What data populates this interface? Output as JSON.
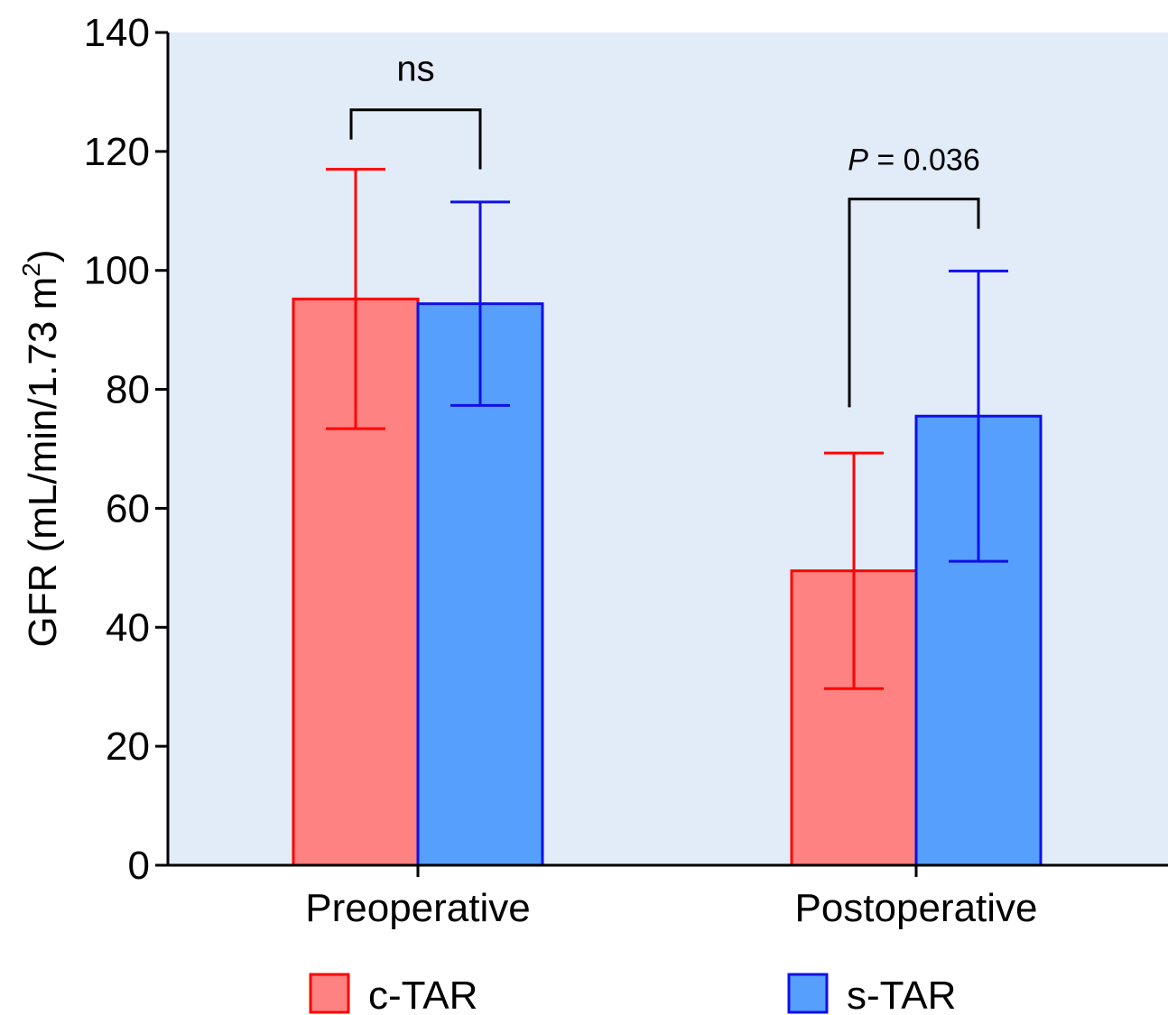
{
  "chart_data": {
    "type": "bar",
    "title": "",
    "xlabel": "",
    "ylabel_main": "GFR (mL/min/1.73 m",
    "ylabel_sup": "2",
    "ylabel_close": ")",
    "ylim": [
      0,
      140
    ],
    "yticks": [
      0,
      20,
      40,
      60,
      80,
      100,
      120,
      140
    ],
    "categories": [
      "Preoperative",
      "Postoperative"
    ],
    "series": [
      {
        "name": "c-TAR",
        "fill": "#ff8282",
        "stroke": "#ff0000",
        "values": [
          95.2,
          49.5
        ],
        "error": [
          21.8,
          19.8
        ]
      },
      {
        "name": "s-TAR",
        "fill": "#569ffd",
        "stroke": "#0f10e6",
        "values": [
          94.4,
          75.5
        ],
        "error": [
          17.1,
          24.4
        ]
      }
    ],
    "annotations": [
      {
        "category": 0,
        "prefix": "",
        "text": "ns",
        "left_base": 122,
        "right_base": 117,
        "top": 127
      },
      {
        "category": 1,
        "prefix": "P",
        "text": " = 0.036",
        "left_base": 77,
        "right_base": 107,
        "top": 112
      }
    ],
    "plot_background": "#e2ecf9",
    "legend_position": "bottom"
  }
}
